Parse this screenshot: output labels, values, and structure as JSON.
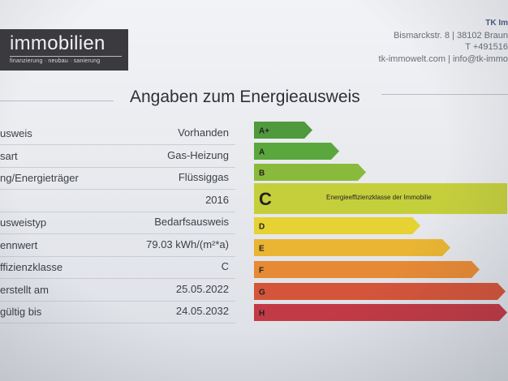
{
  "header": {
    "logo_word": "immobilien",
    "logo_tagline": "finanzierung · neubau · sanierung",
    "company": "TK Im",
    "address": "Bismarckstr. 8 | 38102 Braun",
    "phone": "T +491516",
    "web": "tk-immowelt.com | info@tk-immo"
  },
  "title": "Angaben zum Energieausweis",
  "rows": [
    {
      "label": "usweis",
      "value": "Vorhanden"
    },
    {
      "label": "sart",
      "value": "Gas-Heizung"
    },
    {
      "label": "ng/Energieträger",
      "value": "Flüssiggas"
    },
    {
      "label": "",
      "value": "2016"
    },
    {
      "label": "usweistyp",
      "value": "Bedarfsausweis"
    },
    {
      "label": "ennwert",
      "value": "79.03 kWh/(m²*a)"
    },
    {
      "label": "ffizienzklasse",
      "value": "C"
    },
    {
      "label": "erstellt am",
      "value": "25.05.2022"
    },
    {
      "label": "gültig bis",
      "value": "24.05.2032"
    }
  ],
  "energy_scale": {
    "classes": [
      {
        "letter": "A+",
        "color": "#4f9a3c"
      },
      {
        "letter": "A",
        "color": "#5aa83d"
      },
      {
        "letter": "B",
        "color": "#8aba3c"
      },
      {
        "letter": "C",
        "color": "#c5cf3c"
      },
      {
        "letter": "D",
        "color": "#e6d233"
      },
      {
        "letter": "E",
        "color": "#e9b533"
      },
      {
        "letter": "F",
        "color": "#e78a35"
      },
      {
        "letter": "G",
        "color": "#d4553a"
      },
      {
        "letter": "H",
        "color": "#c23a45"
      }
    ],
    "selected_class": "C",
    "selected_caption": "Energieeffizienzklasse der Immobilie"
  }
}
